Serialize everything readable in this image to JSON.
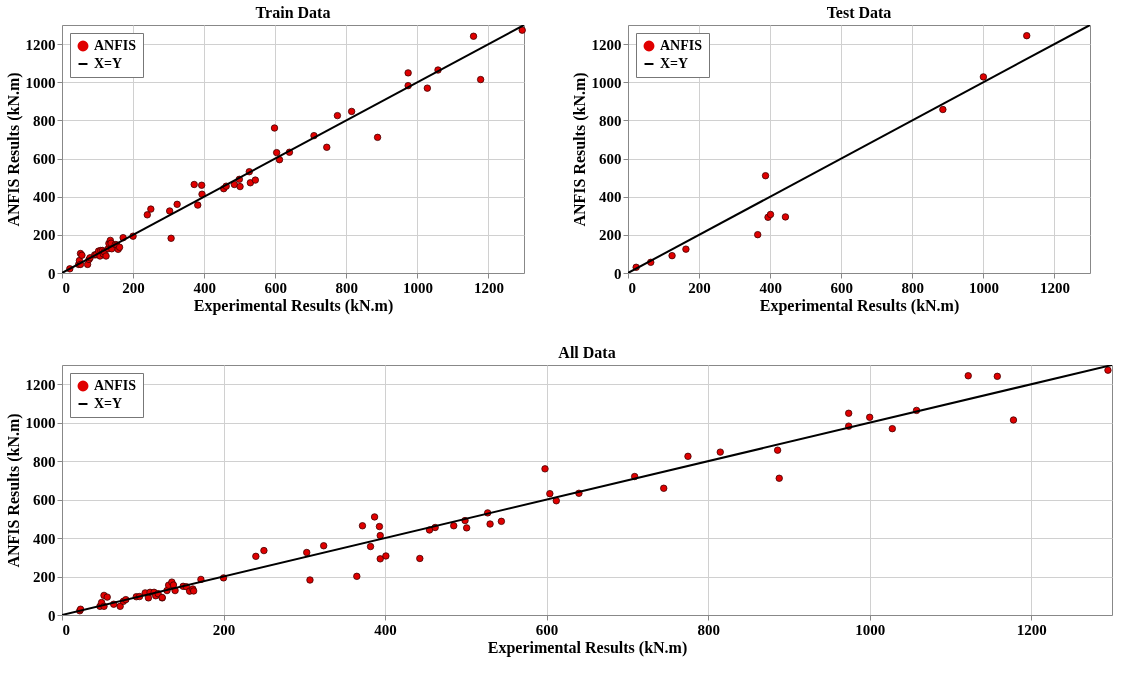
{
  "chart_data": [
    {
      "type": "scatter",
      "title": "Train Data",
      "xlabel": "Experimental Results (kN.m)",
      "ylabel": "ANFIS Results (kN.m)",
      "xlim": [
        0,
        1300
      ],
      "ylim": [
        0,
        1300
      ],
      "xticks": [
        0,
        200,
        400,
        600,
        800,
        1000,
        1200
      ],
      "yticks": [
        0,
        200,
        400,
        600,
        800,
        1000,
        1200
      ],
      "grid": true,
      "legend": "top left",
      "series": [
        {
          "name": "ANFIS",
          "color": "#e00000",
          "x": [
            22,
            47,
            49,
            52,
            56,
            52,
            72,
            76,
            79,
            92,
            96,
            103,
            107,
            109,
            114,
            116,
            119,
            124,
            130,
            132,
            136,
            138,
            140,
            150,
            154,
            158,
            162,
            172,
            200,
            240,
            250,
            303,
            307,
            324,
            372,
            382,
            393,
            394,
            455,
            462,
            485,
            499,
            501,
            527,
            530,
            544,
            598,
            604,
            612,
            640,
            709,
            745,
            775,
            815,
            888,
            974,
            974,
            1028,
            1058,
            1158,
            1178,
            1295
          ],
          "values": [
            22,
            45,
            65,
            102,
            93,
            45,
            45,
            71,
            80,
            95,
            96,
            115,
            89,
            118,
            118,
            100,
            111,
            89,
            127,
            155,
            171,
            156,
            127,
            149,
            147,
            124,
            135,
            185,
            193,
            305,
            335,
            325,
            182,
            360,
            464,
            356,
            460,
            413,
            442,
            455,
            464,
            491,
            453,
            531,
            473,
            487,
            760,
            631,
            594,
            633,
            720,
            659,
            825,
            847,
            711,
            1049,
            982,
            969,
            1064,
            1241,
            1014,
            1273
          ]
        },
        {
          "name": "X=Y",
          "type": "line",
          "color": "#000000",
          "x": [
            0,
            1300
          ],
          "values": [
            0,
            1300
          ]
        }
      ]
    },
    {
      "type": "scatter",
      "title": "Test Data",
      "xlabel": "Experimental Results (kN.m)",
      "ylabel": "ANFIS Results (kN.m)",
      "xlim": [
        0,
        1300
      ],
      "ylim": [
        0,
        1300
      ],
      "xticks": [
        0,
        200,
        400,
        600,
        800,
        1000,
        1200
      ],
      "yticks": [
        0,
        200,
        400,
        600,
        800,
        1000,
        1200
      ],
      "grid": true,
      "legend": "top left",
      "series": [
        {
          "name": "ANFIS",
          "color": "#e00000",
          "x": [
            23,
            64,
            124,
            163,
            365,
            387,
            394,
            401,
            443,
            886,
            1000,
            1122
          ],
          "values": [
            30,
            56,
            91,
            125,
            201,
            510,
            292,
            307,
            294,
            857,
            1028,
            1244
          ]
        },
        {
          "name": "X=Y",
          "type": "line",
          "color": "#000000",
          "x": [
            0,
            1300
          ],
          "values": [
            0,
            1300
          ]
        }
      ]
    },
    {
      "type": "scatter",
      "title": "All Data",
      "xlabel": "Experimental Results (kN.m)",
      "ylabel": "ANFIS Results (kN.m)",
      "xlim": [
        0,
        1300
      ],
      "ylim": [
        0,
        1300
      ],
      "xticks": [
        0,
        200,
        400,
        600,
        800,
        1000,
        1200
      ],
      "yticks": [
        0,
        200,
        400,
        600,
        800,
        1000,
        1200
      ],
      "grid": true,
      "legend": "top left",
      "series": [
        {
          "name": "ANFIS",
          "color": "#e00000",
          "x": [
            22,
            47,
            49,
            52,
            56,
            52,
            72,
            76,
            79,
            92,
            96,
            103,
            107,
            109,
            114,
            116,
            119,
            124,
            130,
            132,
            136,
            138,
            140,
            150,
            154,
            158,
            162,
            172,
            200,
            240,
            250,
            303,
            307,
            324,
            372,
            382,
            393,
            394,
            455,
            462,
            485,
            499,
            501,
            527,
            530,
            544,
            598,
            604,
            612,
            640,
            709,
            745,
            775,
            815,
            888,
            974,
            974,
            1028,
            1058,
            1158,
            1178,
            1295,
            23,
            64,
            124,
            163,
            365,
            387,
            394,
            401,
            443,
            886,
            1000,
            1122
          ],
          "values": [
            22,
            45,
            65,
            102,
            93,
            45,
            45,
            71,
            80,
            95,
            96,
            115,
            89,
            118,
            118,
            100,
            111,
            89,
            127,
            155,
            171,
            156,
            127,
            149,
            147,
            124,
            135,
            185,
            193,
            305,
            335,
            325,
            182,
            360,
            464,
            356,
            460,
            413,
            442,
            455,
            464,
            491,
            453,
            531,
            473,
            487,
            760,
            631,
            594,
            633,
            720,
            659,
            825,
            847,
            711,
            1049,
            982,
            969,
            1064,
            1241,
            1014,
            1273,
            30,
            56,
            91,
            125,
            201,
            510,
            292,
            307,
            294,
            857,
            1028,
            1244
          ]
        },
        {
          "name": "X=Y",
          "type": "line",
          "color": "#000000",
          "x": [
            0,
            1300
          ],
          "values": [
            0,
            1300
          ]
        }
      ]
    }
  ]
}
